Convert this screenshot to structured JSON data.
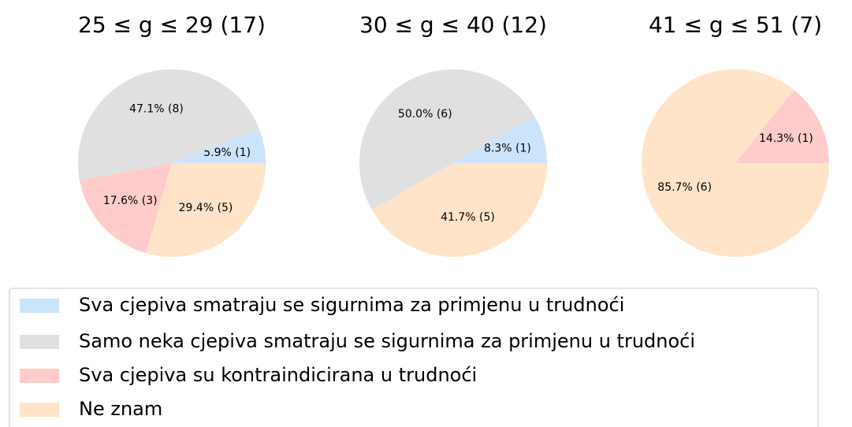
{
  "chart_data": [
    {
      "type": "pie",
      "title": "25 ≤ g ≤ 29 (17)",
      "categories": [
        "Sva cjepiva smatraju se sigurnima za primjenu u trudnoći",
        "Samo neka cjepiva smatraju se sigurnima za primjenu u trudnoći",
        "Sva cjepiva su kontraindicirana u trudnoći",
        "Ne znam"
      ],
      "values": [
        1,
        8,
        3,
        5
      ],
      "value_labels": [
        "5.9% (1)",
        "47.1% (8)",
        "17.6% (3)",
        "29.4% (5)"
      ],
      "colors": [
        "#cce4fb",
        "#e0e0e0",
        "#ffcccb",
        "#ffe4ca"
      ]
    },
    {
      "type": "pie",
      "title": "30 ≤ g ≤ 40 (12)",
      "categories": [
        "Sva cjepiva smatraju se sigurnima za primjenu u trudnoći",
        "Samo neka cjepiva smatraju se sigurnima za primjenu u trudnoći",
        "Ne znam"
      ],
      "values": [
        1,
        6,
        5
      ],
      "value_labels": [
        "8.3% (1)",
        "50.0% (6)",
        "41.7% (5)"
      ],
      "colors": [
        "#cce4fb",
        "#e0e0e0",
        "#ffe4ca"
      ]
    },
    {
      "type": "pie",
      "title": "41 ≤ g ≤ 51 (7)",
      "categories": [
        "Sva cjepiva su kontraindicirana u trudnoći",
        "Ne znam"
      ],
      "values": [
        1,
        6
      ],
      "value_labels": [
        "14.3% (1)",
        "85.7% (6)"
      ],
      "colors": [
        "#ffcccb",
        "#ffe4ca"
      ]
    }
  ],
  "legend": {
    "names": [
      "Sva cjepiva smatraju se sigurnima za primjenu u trudnoći",
      "Samo neka cjepiva smatraju se sigurnima za primjenu u trudnoći",
      "Sva cjepiva su kontraindicirana u trudnoći",
      "Ne znam"
    ],
    "colors": [
      "#cce4fb",
      "#e0e0e0",
      "#ffcccb",
      "#ffe4ca"
    ]
  }
}
